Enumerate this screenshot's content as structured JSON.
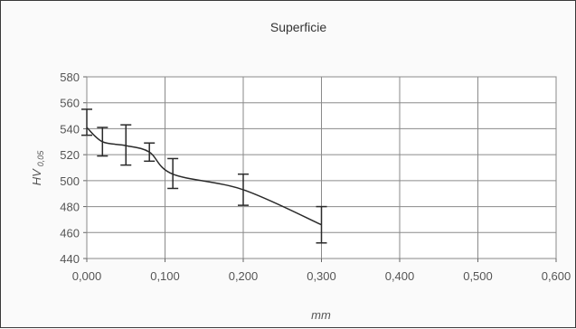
{
  "chart_data": {
    "type": "line",
    "title": "Superficie",
    "xlabel": "mm",
    "ylabel": "HV",
    "ylabel_sub": "0,05",
    "xlim": [
      0,
      0.6
    ],
    "ylim": [
      440,
      580
    ],
    "x_ticks": [
      "0,000",
      "0,100",
      "0,200",
      "0,300",
      "0,400",
      "0,500",
      "0,600"
    ],
    "y_ticks": [
      "440",
      "460",
      "480",
      "500",
      "520",
      "540",
      "560",
      "580"
    ],
    "grid": true,
    "legend": "none",
    "line_color": "#2a2a2a",
    "series": [
      {
        "x": [
          0.0,
          0.02,
          0.05,
          0.08,
          0.11,
          0.2,
          0.3
        ],
        "y": [
          541,
          530,
          527,
          522,
          505,
          493,
          466
        ],
        "err_low": [
          535,
          519,
          512,
          515,
          494,
          481,
          452
        ],
        "err_high": [
          555,
          541,
          543,
          529,
          517,
          505,
          480
        ]
      }
    ]
  }
}
